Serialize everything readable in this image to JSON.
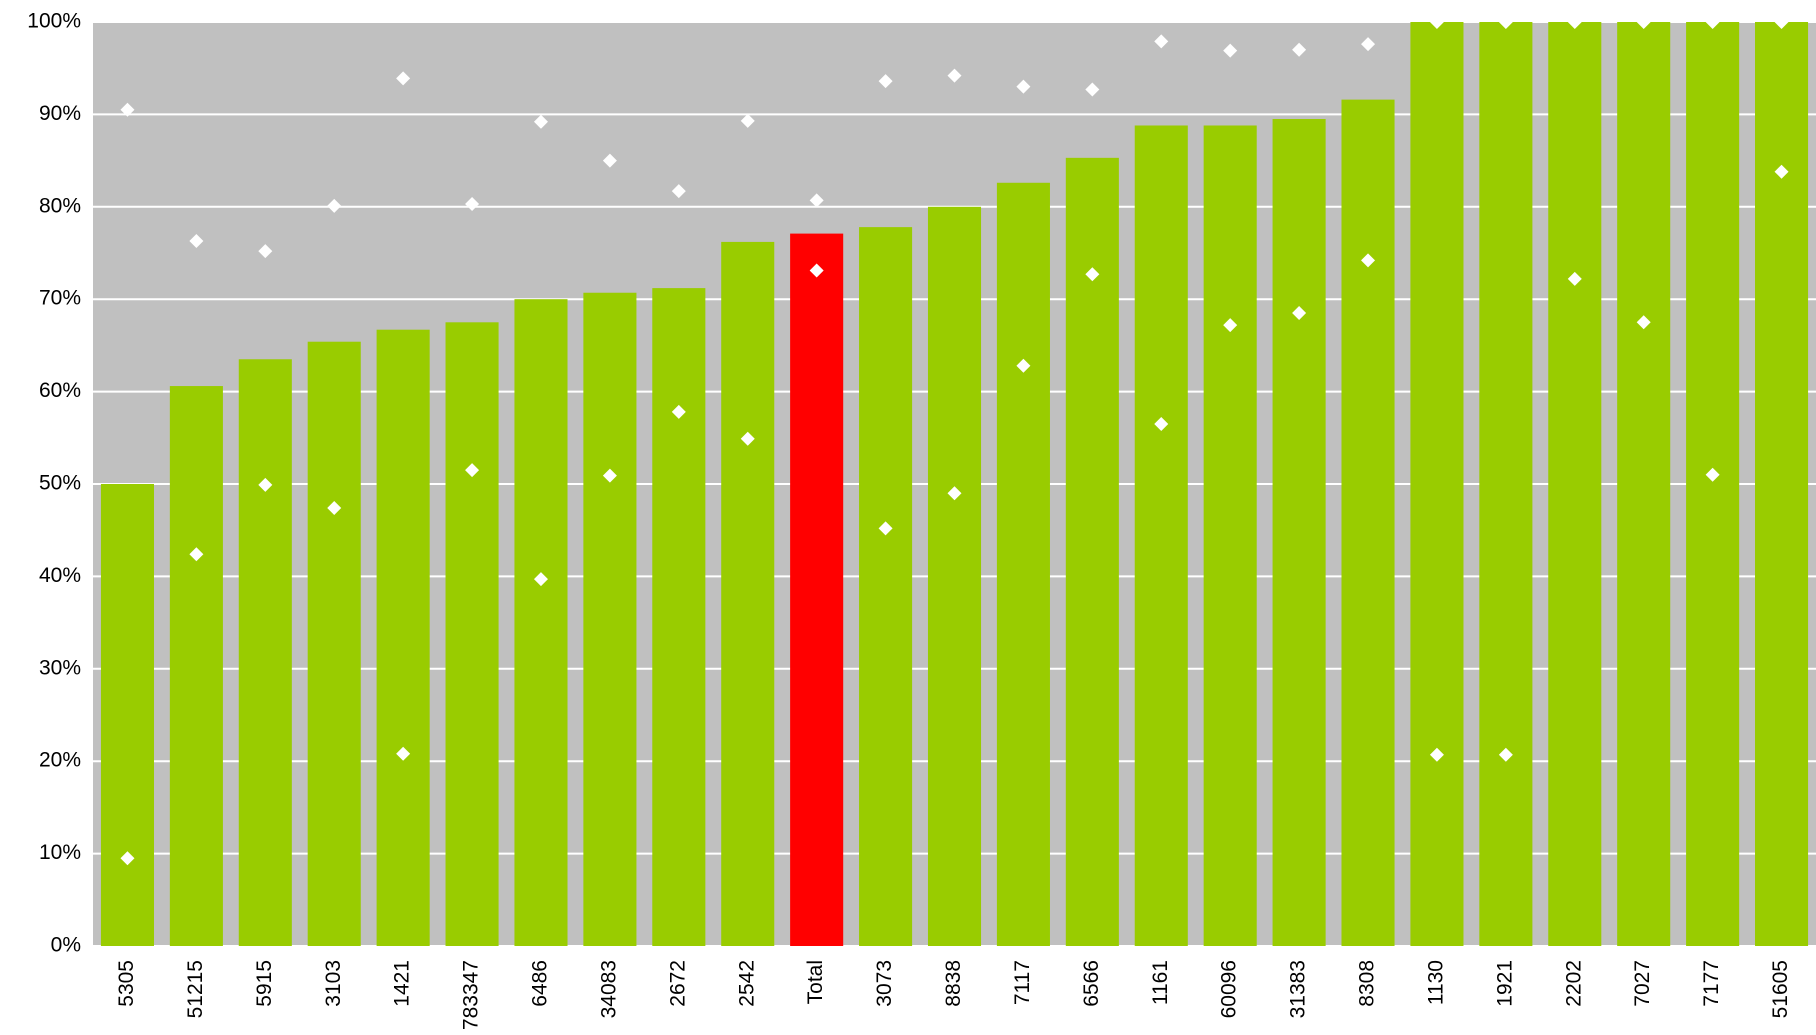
{
  "chart_data": {
    "type": "bar",
    "categories": [
      "5305",
      "51215",
      "5915",
      "3103",
      "1421",
      "783347",
      "6486",
      "34083",
      "2672",
      "2542",
      "Total",
      "3073",
      "8838",
      "7117",
      "6566",
      "1161",
      "60096",
      "31383",
      "8308",
      "1130",
      "1921",
      "2202",
      "7027",
      "7177",
      "51605"
    ],
    "series": [
      {
        "type": "bar",
        "colors": [
          "#99cc00",
          "#99cc00",
          "#99cc00",
          "#99cc00",
          "#99cc00",
          "#99cc00",
          "#99cc00",
          "#99cc00",
          "#99cc00",
          "#99cc00",
          "#ff0000",
          "#99cc00",
          "#99cc00",
          "#99cc00",
          "#99cc00",
          "#99cc00",
          "#99cc00",
          "#99cc00",
          "#99cc00",
          "#99cc00",
          "#99cc00",
          "#99cc00",
          "#99cc00",
          "#99cc00",
          "#99cc00"
        ],
        "values": [
          50,
          60.6,
          63.5,
          65.4,
          66.7,
          67.5,
          70.0,
          70.7,
          71.2,
          76.2,
          77.1,
          77.8,
          80.0,
          82.6,
          85.3,
          88.8,
          88.8,
          89.5,
          91.6,
          100,
          100,
          100,
          100,
          100,
          100
        ]
      },
      {
        "type": "scatter",
        "color": "#ffffff",
        "values": [
          90.5,
          76.3,
          75.2,
          80.1,
          93.9,
          80.3,
          89.2,
          85.0,
          81.7,
          89.3,
          80.7,
          93.6,
          94.2,
          93.0,
          92.7,
          97.9,
          96.9,
          97.0,
          97.6,
          100,
          100,
          100,
          100,
          100,
          100
        ]
      },
      {
        "type": "scatter",
        "color": "#ffffff",
        "values": [
          9.5,
          42.4,
          49.9,
          47.4,
          20.8,
          51.5,
          39.7,
          50.9,
          57.8,
          54.9,
          73.1,
          45.2,
          49.0,
          62.8,
          72.7,
          56.5,
          67.2,
          68.5,
          74.2,
          20.7,
          20.7,
          72.2,
          67.5,
          51.0,
          83.8
        ]
      }
    ],
    "ylim": [
      0,
      100
    ],
    "yticks": [
      {
        "value": 0,
        "label": "0%"
      },
      {
        "value": 10,
        "label": "10%"
      },
      {
        "value": 20,
        "label": "20%"
      },
      {
        "value": 30,
        "label": "30%"
      },
      {
        "value": 40,
        "label": "40%"
      },
      {
        "value": 50,
        "label": "50%"
      },
      {
        "value": 60,
        "label": "60%"
      },
      {
        "value": 70,
        "label": "70%"
      },
      {
        "value": 80,
        "label": "80%"
      },
      {
        "value": 90,
        "label": "90%"
      },
      {
        "value": 100,
        "label": "100%"
      }
    ],
    "grid": true,
    "background": "#c0c0c0"
  }
}
